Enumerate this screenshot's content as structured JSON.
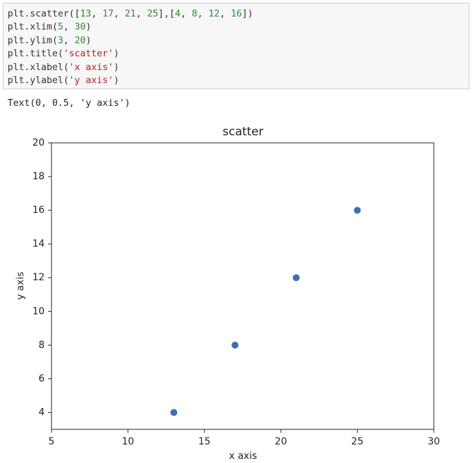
{
  "code_cell": {
    "lines": [
      "plt.scatter([13, 17, 21, 25],[4, 8, 12, 16])",
      "plt.xlim(5, 30)",
      "plt.ylim(3, 20)",
      "plt.title('scatter')",
      "plt.xlabel('x axis')",
      "plt.ylabel('y axis')"
    ]
  },
  "output": {
    "text": "Text(0, 0.5, 'y axis')"
  },
  "chart_data": {
    "type": "scatter",
    "title": "scatter",
    "x_label": "x axis",
    "y_label": "y axis",
    "x": [
      13,
      17,
      21,
      25
    ],
    "values": [
      4,
      8,
      12,
      16
    ],
    "color": "#3e6db3",
    "xlim": [
      5,
      30
    ],
    "ylim": [
      3,
      20
    ],
    "xticks": [
      5,
      10,
      15,
      20,
      25,
      30
    ],
    "yticks": [
      4,
      6,
      8,
      10,
      12,
      14,
      16,
      18,
      20
    ]
  }
}
